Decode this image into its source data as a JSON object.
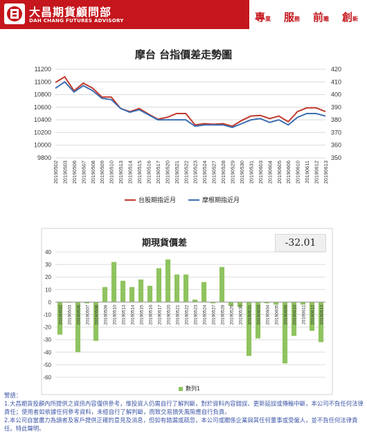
{
  "header": {
    "brand_cn": "大昌期貨顧問部",
    "brand_en": "DAH CHANG FUTURES ADVISORY",
    "slogan": [
      {
        "main": "專",
        "sub": "業"
      },
      {
        "main": "服",
        "sub": "務"
      },
      {
        "main": "前",
        "sub": "瞻"
      },
      {
        "main": "創",
        "sub": "新"
      }
    ],
    "brand_color": "#c4161c"
  },
  "chart_data": [
    {
      "type": "line",
      "title": "摩台 台指價差走勢圖",
      "x": [
        "20190502",
        "20190503",
        "20190506",
        "20190507",
        "20190508",
        "20190509",
        "20190510",
        "20190513",
        "20190514",
        "20190515",
        "20190516",
        "20190517",
        "20190520",
        "20190521",
        "20190522",
        "20190523",
        "20190524",
        "20190527",
        "20190528",
        "20190529",
        "20190530",
        "20190531",
        "20190603",
        "20190604",
        "20190605",
        "20190606",
        "20190610",
        "20190611",
        "20190612",
        "20190613"
      ],
      "series": [
        {
          "name": "台股期指近月",
          "axis": "left",
          "color": "#c0392b",
          "values": [
            10990,
            11080,
            10860,
            10980,
            10900,
            10760,
            10760,
            10580,
            10530,
            10580,
            10490,
            10410,
            10440,
            10500,
            10500,
            10320,
            10340,
            10330,
            10340,
            10300,
            10390,
            10460,
            10470,
            10420,
            10460,
            10370,
            10530,
            10590,
            10590,
            10530
          ]
        },
        {
          "name": "摩根期指近月",
          "axis": "right",
          "color": "#3c6eb4",
          "values": [
            405,
            410,
            402,
            407,
            403,
            397,
            396,
            389,
            386,
            388,
            384,
            380,
            380,
            380,
            380,
            375,
            376,
            376,
            376,
            374,
            377,
            380,
            381,
            378,
            380,
            376,
            382,
            385,
            385,
            383
          ]
        }
      ],
      "y_left": {
        "min": 9800,
        "max": 11200,
        "step": 200
      },
      "y_right": {
        "min": 350,
        "max": 420,
        "step": 10
      },
      "legend_position": "bottom",
      "grid": true
    },
    {
      "type": "bar",
      "title": "期現貨價差",
      "basis_value": "-32.01",
      "categories": [
        "20190502",
        "20190503",
        "20190506",
        "20190507",
        "20190508",
        "20190509",
        "20190510",
        "20190513",
        "20190514",
        "20190515",
        "20190516",
        "20190517",
        "20190520",
        "20190521",
        "20190522",
        "20190523",
        "20190524",
        "20190527",
        "20190528",
        "20190529",
        "20190530",
        "20190531",
        "20190603",
        "20190604",
        "20190605",
        "20190606",
        "20190610",
        "20190611",
        "20190612",
        "20190613"
      ],
      "series": [
        {
          "name": "數列1",
          "color": "#8fc35f",
          "values": [
            -26,
            -0.5,
            -40,
            -1,
            -31,
            12,
            32,
            17,
            12,
            18,
            13,
            27,
            34,
            22,
            22,
            2,
            16,
            -1,
            28,
            -3,
            -4,
            -43,
            -29,
            -1,
            -2,
            -49,
            -27,
            -2,
            -23,
            -32
          ]
        }
      ],
      "ylim": [
        -60,
        40
      ],
      "ystep": 10,
      "legend_position": "bottom",
      "grid": true
    }
  ],
  "footer": {
    "label": "警語：",
    "lines": [
      "1.大昌期貨投顧內所提供之資訊內容僅供參考，惟投資人仍需自行了解判斷，對於資料內容錯誤、更新延誤或傳輸中斷，本公司不負任何法律責任；使用者如依據任何參考資料，未經自行了解判斷，而致交易損失風險應自行負責。",
      "2.本公司自當盡力為讀者及客戶提供正確的意見及消息，但如有錯漏或疏忽，本公司或關係企業與其任何董事或受僱人，並不負任何法律責任。特此聲明。"
    ]
  }
}
